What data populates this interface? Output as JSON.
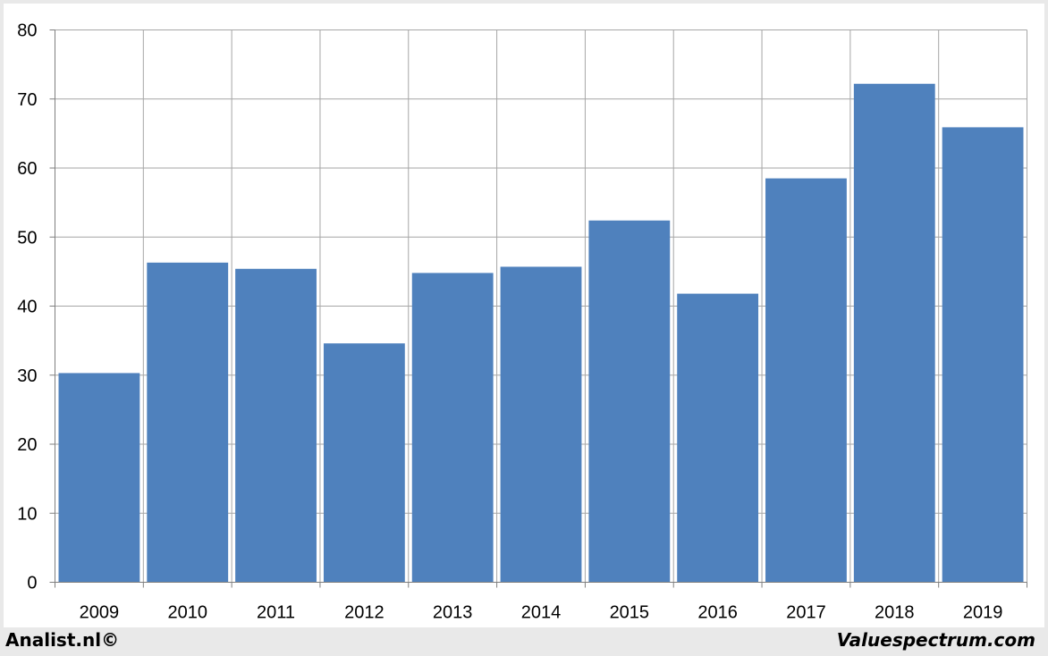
{
  "chart_data": {
    "type": "bar",
    "categories": [
      "2009",
      "2010",
      "2011",
      "2012",
      "2013",
      "2014",
      "2015",
      "2016",
      "2017",
      "2018",
      "2019"
    ],
    "values": [
      30.3,
      46.3,
      45.4,
      34.6,
      44.8,
      45.7,
      52.4,
      41.8,
      58.5,
      72.2,
      65.9
    ],
    "title": "",
    "xlabel": "",
    "ylabel": "",
    "ylim": [
      0,
      80
    ],
    "yticks": [
      0,
      10,
      20,
      30,
      40,
      50,
      60,
      70,
      80
    ],
    "grid": true,
    "bar_color": "#4f81bd",
    "grid_color": "#a6a6a6"
  },
  "footer": {
    "left": "Analist.nl©",
    "right": "Valuespectrum.com"
  }
}
